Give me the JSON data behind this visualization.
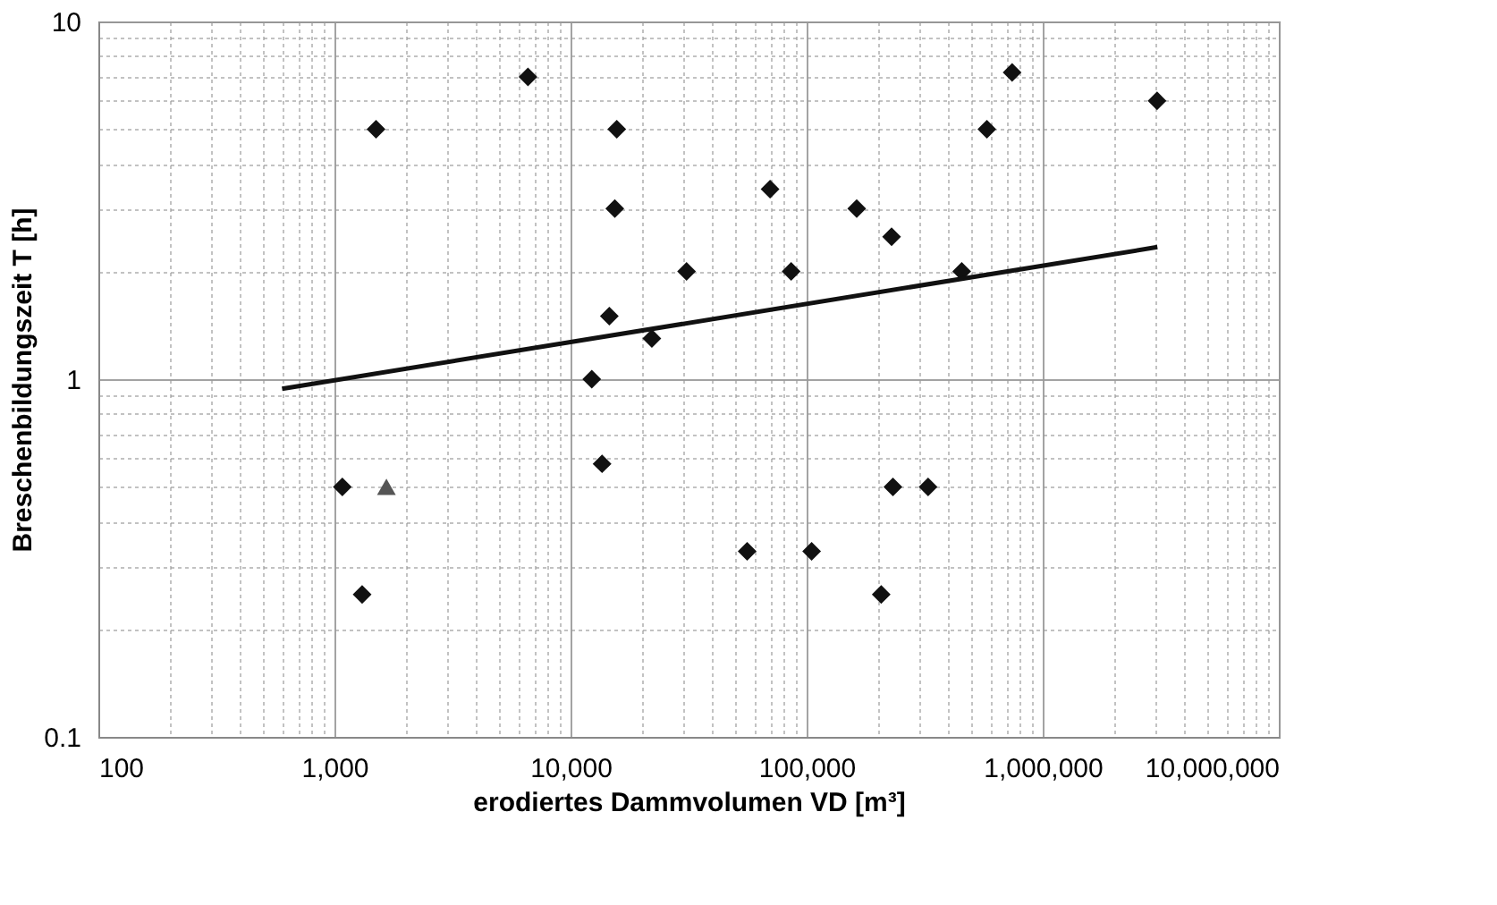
{
  "chart_data": {
    "type": "scatter",
    "xlabel": "erodiertes Dammvolumen VD [m³]",
    "ylabel": "Breschenbildungszeit T [h]",
    "log": "xy",
    "grid": true,
    "xlim": [
      100,
      10000000
    ],
    "ylim": [
      0.1,
      10
    ],
    "xticks": [
      100,
      {
        "value": 200,
        "label": null
      },
      {
        "value": 300,
        "label": null
      },
      {
        "value": 400,
        "label": null
      },
      {
        "value": 500,
        "label": null
      },
      {
        "value": 600,
        "label": null
      },
      {
        "value": 700,
        "label": null
      },
      {
        "value": 800,
        "label": null
      },
      {
        "value": 900,
        "label": null
      },
      {
        "value": 1000,
        "label": "1,000"
      },
      {
        "value": 2000,
        "label": null
      },
      {
        "value": 3000,
        "label": null
      },
      {
        "value": 4000,
        "label": null
      },
      {
        "value": 5000,
        "label": null
      },
      {
        "value": 6000,
        "label": null
      },
      {
        "value": 7000,
        "label": null
      },
      {
        "value": 8000,
        "label": null
      },
      {
        "value": 9000,
        "label": null
      },
      {
        "value": 10000,
        "label": "10,000"
      },
      {
        "value": 20000,
        "label": null
      },
      {
        "value": 30000,
        "label": null
      },
      {
        "value": 40000,
        "label": null
      },
      {
        "value": 50000,
        "label": null
      },
      {
        "value": 60000,
        "label": null
      },
      {
        "value": 70000,
        "label": null
      },
      {
        "value": 80000,
        "label": null
      },
      {
        "value": 90000,
        "label": null
      },
      {
        "value": 100000,
        "label": "100,000"
      },
      {
        "value": 200000,
        "label": null
      },
      {
        "value": 300000,
        "label": null
      },
      {
        "value": 400000,
        "label": null
      },
      {
        "value": 500000,
        "label": null
      },
      {
        "value": 600000,
        "label": null
      },
      {
        "value": 700000,
        "label": null
      },
      {
        "value": 800000,
        "label": null
      },
      {
        "value": 900000,
        "label": null
      },
      {
        "value": 1000000,
        "label": "1,000,000"
      },
      {
        "value": 2000000,
        "label": null
      },
      {
        "value": 3000000,
        "label": null
      },
      {
        "value": 4000000,
        "label": null
      },
      {
        "value": 5000000,
        "label": null
      },
      {
        "value": 6000000,
        "label": null
      },
      {
        "value": 7000000,
        "label": null
      },
      {
        "value": 8000000,
        "label": null
      },
      {
        "value": 9000000,
        "label": null
      },
      {
        "value": 10000000,
        "label": "10,000,000"
      }
    ],
    "yticks": [
      0.1,
      {
        "value": 0.2,
        "label": null
      },
      {
        "value": 0.3,
        "label": null
      },
      {
        "value": 0.4,
        "label": null
      },
      {
        "value": 0.5,
        "label": null
      },
      {
        "value": 0.6,
        "label": null
      },
      {
        "value": 0.7,
        "label": null
      },
      {
        "value": 0.8,
        "label": null
      },
      {
        "value": 0.9,
        "label": null
      },
      1,
      {
        "value": 2,
        "label": null
      },
      {
        "value": 3,
        "label": null
      },
      {
        "value": 4,
        "label": null
      },
      {
        "value": 5,
        "label": null
      },
      {
        "value": 6,
        "label": null
      },
      {
        "value": 7,
        "label": null
      },
      {
        "value": 8,
        "label": null
      },
      {
        "value": 9,
        "label": null
      },
      10
    ],
    "series": [
      {
        "marker": "diamond",
        "color": "#111111",
        "x": [
          1500,
          6600,
          15700,
          15400,
          31000,
          14600,
          22100,
          12300,
          13600,
          1080,
          1310,
          70000,
          86000,
          163000,
          229000,
          454000,
          580000,
          742000,
          3050000,
          232000,
          327000,
          56000,
          105000,
          207000
        ],
        "values": [
          5,
          7,
          5,
          3,
          2,
          1.5,
          1.3,
          1,
          0.58,
          0.5,
          0.25,
          3.4,
          2,
          3,
          2.5,
          2,
          5,
          7.2,
          6,
          0.5,
          0.5,
          0.33,
          0.33,
          0.25
        ]
      },
      {
        "marker": "triangle",
        "color": "#555555",
        "x": [
          1660
        ],
        "values": [
          0.5
        ]
      },
      {
        "type": "line",
        "marker": "none",
        "line_style": "solid",
        "color": "#111111",
        "x": [
          600,
          3060000
        ],
        "values": [
          0.94,
          2.34
        ]
      }
    ]
  }
}
